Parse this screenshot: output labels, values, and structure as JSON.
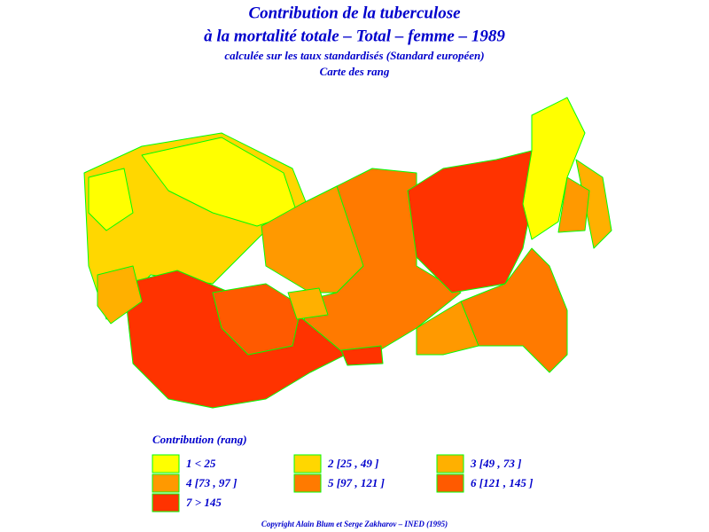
{
  "header": {
    "title": "Contribution de la tuberculose",
    "title2": "à la mortalité totale – Total – femme – 1989",
    "subtitle": "calculée sur les taux standardisés (Standard européen)",
    "subtitle2": "Carte des rang"
  },
  "legend": {
    "title": "Contribution (rang)",
    "items": [
      {
        "label": "1 < 25",
        "color": "#ffff00"
      },
      {
        "label": "2 [25 , 49 ]",
        "color": "#ffd700"
      },
      {
        "label": "3 [49 , 73 ]",
        "color": "#ffb000"
      },
      {
        "label": "4 [73 , 97 ]",
        "color": "#ff9900"
      },
      {
        "label": "5 [97 , 121 ]",
        "color": "#ff7a00"
      },
      {
        "label": "6 [121 , 145 ]",
        "color": "#ff5a00"
      },
      {
        "label": "7 > 145",
        "color": "#ff3300"
      }
    ]
  },
  "footer": {
    "copyright": "Copyright Alain Blum et Serge Zakharov – INED (1995)"
  }
}
